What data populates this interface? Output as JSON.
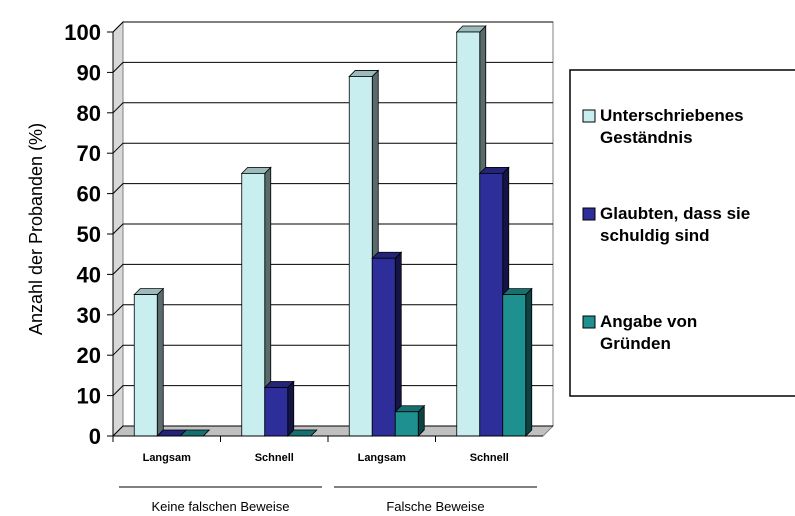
{
  "chart_data": {
    "type": "bar",
    "ylabel": "Anzahl der Probanden (%)",
    "ylim": [
      0,
      100
    ],
    "yticks": [
      0,
      10,
      20,
      30,
      40,
      50,
      60,
      70,
      80,
      90,
      100
    ],
    "grid": true,
    "legend_position": "right",
    "categories": [
      "Langsam",
      "Schnell",
      "Langsam",
      "Schnell"
    ],
    "groups": [
      {
        "label": "Keine falschen Beweise",
        "categories": [
          0,
          1
        ]
      },
      {
        "label": "Falsche Beweise",
        "categories": [
          2,
          3
        ]
      }
    ],
    "series": [
      {
        "name": "Unterschriebenes\nGeständnis",
        "color": "#c8eef0",
        "values": [
          35,
          65,
          89,
          100
        ]
      },
      {
        "name": "Glaubten, dass sie\nschuldig sind",
        "color": "#2e2e9a",
        "values": [
          0,
          12,
          44,
          65
        ]
      },
      {
        "name": "Angabe von\nGründen",
        "color": "#1e9090",
        "values": [
          0,
          0,
          6,
          35
        ]
      }
    ]
  }
}
